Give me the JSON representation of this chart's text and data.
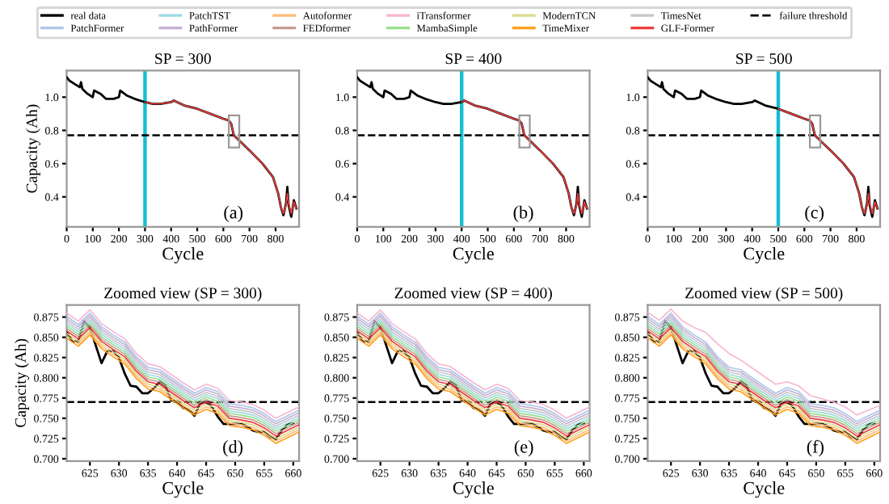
{
  "chart_data": [
    {
      "type": "line",
      "title": "SP = 300",
      "xlabel": "Cycle",
      "ylabel": "Capacity (Ah)",
      "xlim": [
        0,
        890
      ],
      "xticks": [
        0,
        100,
        200,
        300,
        400,
        500,
        600,
        700,
        800
      ],
      "ylim": [
        0.22,
        1.16
      ],
      "yticks": [
        0.4,
        0.6,
        0.8,
        {
          "value": 1.0,
          "label": "1.0"
        }
      ],
      "line_style": "solid",
      "marker": "none",
      "grid": false,
      "annotations": [
        "(a)"
      ],
      "ref_lines": [
        {
          "axis": "x",
          "value": 300,
          "color": "#17becf",
          "line_style": "solid"
        },
        {
          "axis": "y",
          "value": 0.77,
          "color": "#000000",
          "line_style": "dashed"
        }
      ],
      "series": [
        {
          "color": "#000000",
          "x": [
            0,
            10,
            30,
            50,
            55,
            60,
            80,
            100,
            105,
            130,
            150,
            180,
            200,
            205,
            230,
            260,
            300,
            330,
            360,
            400,
            410,
            450,
            500,
            550,
            600,
            620,
            630,
            640,
            660,
            700,
            750,
            790,
            810,
            820,
            830,
            840,
            845,
            850,
            860,
            870,
            880
          ],
          "values": [
            1.12,
            1.1,
            1.08,
            1.06,
            1.09,
            1.05,
            1.02,
            1.0,
            1.04,
            1.02,
            0.99,
            0.99,
            1.0,
            1.04,
            1.01,
            0.99,
            0.97,
            0.96,
            0.96,
            0.97,
            0.98,
            0.95,
            0.93,
            0.9,
            0.87,
            0.86,
            0.84,
            0.77,
            0.74,
            0.68,
            0.6,
            0.52,
            0.42,
            0.34,
            0.29,
            0.36,
            0.46,
            0.35,
            0.28,
            0.38,
            0.33
          ]
        },
        {
          "color": "#f03c3c",
          "x": [
            300,
            330,
            360,
            400,
            410,
            450,
            500,
            550,
            600,
            620,
            630,
            640,
            660,
            700,
            750,
            790,
            810,
            820,
            830,
            840,
            845,
            850,
            860,
            870,
            880
          ],
          "values": [
            0.97,
            0.96,
            0.96,
            0.97,
            0.98,
            0.95,
            0.93,
            0.9,
            0.87,
            0.86,
            0.84,
            0.77,
            0.74,
            0.68,
            0.6,
            0.52,
            0.42,
            0.34,
            0.3,
            0.35,
            0.42,
            0.36,
            0.3,
            0.37,
            0.33
          ]
        }
      ]
    },
    {
      "type": "line",
      "title": "SP = 400",
      "xlabel": "Cycle",
      "xlim": [
        0,
        890
      ],
      "xticks": [
        0,
        100,
        200,
        300,
        400,
        500,
        600,
        700,
        800
      ],
      "ylim": [
        0.22,
        1.16
      ],
      "yticks": [
        0.4,
        0.6,
        0.8,
        {
          "value": 1.0,
          "label": "1.0"
        }
      ],
      "line_style": "solid",
      "marker": "none",
      "grid": false,
      "annotations": [
        "(b)"
      ],
      "ref_lines": [
        {
          "axis": "x",
          "value": 400,
          "color": "#17becf",
          "line_style": "solid"
        },
        {
          "axis": "y",
          "value": 0.77,
          "color": "#000000",
          "line_style": "dashed"
        }
      ],
      "series": [
        {
          "color": "#000000",
          "x": [
            0,
            10,
            30,
            50,
            55,
            60,
            80,
            100,
            105,
            130,
            150,
            180,
            200,
            205,
            230,
            260,
            300,
            330,
            360,
            400,
            410,
            450,
            500,
            550,
            600,
            620,
            630,
            640,
            660,
            700,
            750,
            790,
            810,
            820,
            830,
            840,
            845,
            850,
            860,
            870,
            880
          ],
          "values": [
            1.12,
            1.1,
            1.08,
            1.06,
            1.09,
            1.05,
            1.02,
            1.0,
            1.04,
            1.02,
            0.99,
            0.99,
            1.0,
            1.04,
            1.01,
            0.99,
            0.97,
            0.96,
            0.96,
            0.97,
            0.98,
            0.95,
            0.93,
            0.9,
            0.87,
            0.86,
            0.84,
            0.77,
            0.74,
            0.68,
            0.6,
            0.52,
            0.42,
            0.34,
            0.29,
            0.36,
            0.46,
            0.35,
            0.28,
            0.38,
            0.33
          ]
        },
        {
          "color": "#f03c3c",
          "x": [
            400,
            410,
            450,
            500,
            550,
            600,
            620,
            630,
            640,
            660,
            700,
            750,
            790,
            810,
            820,
            830,
            840,
            845,
            850,
            860,
            870,
            880
          ],
          "values": [
            0.97,
            0.98,
            0.95,
            0.93,
            0.9,
            0.87,
            0.86,
            0.84,
            0.77,
            0.74,
            0.68,
            0.6,
            0.52,
            0.42,
            0.34,
            0.3,
            0.35,
            0.42,
            0.36,
            0.3,
            0.37,
            0.33
          ]
        }
      ]
    },
    {
      "type": "line",
      "title": "SP = 500",
      "xlabel": "Cycle",
      "xlim": [
        0,
        890
      ],
      "xticks": [
        0,
        100,
        200,
        300,
        400,
        500,
        600,
        700,
        800
      ],
      "ylim": [
        0.22,
        1.16
      ],
      "yticks": [
        0.4,
        0.6,
        0.8,
        {
          "value": 1.0,
          "label": "1.0"
        }
      ],
      "line_style": "solid",
      "marker": "none",
      "grid": false,
      "annotations": [
        "(c)"
      ],
      "ref_lines": [
        {
          "axis": "x",
          "value": 500,
          "color": "#17becf",
          "line_style": "solid"
        },
        {
          "axis": "y",
          "value": 0.77,
          "color": "#000000",
          "line_style": "dashed"
        }
      ],
      "series": [
        {
          "color": "#000000",
          "x": [
            0,
            10,
            30,
            50,
            55,
            60,
            80,
            100,
            105,
            130,
            150,
            180,
            200,
            205,
            230,
            260,
            300,
            330,
            360,
            400,
            410,
            450,
            500,
            550,
            600,
            620,
            630,
            640,
            660,
            700,
            750,
            790,
            810,
            820,
            830,
            840,
            845,
            850,
            860,
            870,
            880
          ],
          "values": [
            1.12,
            1.1,
            1.08,
            1.06,
            1.09,
            1.05,
            1.02,
            1.0,
            1.04,
            1.02,
            0.99,
            0.99,
            1.0,
            1.04,
            1.01,
            0.99,
            0.97,
            0.96,
            0.96,
            0.97,
            0.98,
            0.95,
            0.93,
            0.9,
            0.87,
            0.86,
            0.84,
            0.77,
            0.74,
            0.68,
            0.6,
            0.52,
            0.42,
            0.34,
            0.29,
            0.36,
            0.46,
            0.35,
            0.28,
            0.38,
            0.33
          ]
        },
        {
          "color": "#f03c3c",
          "x": [
            500,
            550,
            600,
            620,
            630,
            640,
            660,
            700,
            750,
            790,
            810,
            820,
            830,
            840,
            845,
            850,
            860,
            870,
            880
          ],
          "values": [
            0.93,
            0.9,
            0.87,
            0.86,
            0.84,
            0.77,
            0.74,
            0.68,
            0.6,
            0.52,
            0.42,
            0.34,
            0.3,
            0.35,
            0.42,
            0.36,
            0.3,
            0.37,
            0.33
          ]
        }
      ]
    },
    {
      "type": "line",
      "title": "Zoomed view (SP = 300)",
      "xlabel": "Cycle",
      "ylabel": "Capacity (Ah)",
      "xlim": [
        621,
        661
      ],
      "xticks": [
        625,
        630,
        635,
        640,
        645,
        650,
        655,
        660
      ],
      "ylim": [
        0.697,
        0.89
      ],
      "yticks": [
        {
          "value": 0.7,
          "label": "0.700"
        },
        {
          "value": 0.725,
          "label": "0.725"
        },
        {
          "value": 0.75,
          "label": "0.750"
        },
        {
          "value": 0.775,
          "label": "0.775"
        },
        {
          "value": 0.8,
          "label": "0.800"
        },
        {
          "value": 0.825,
          "label": "0.825"
        },
        {
          "value": 0.85,
          "label": "0.850"
        },
        {
          "value": 0.875,
          "label": "0.875"
        }
      ],
      "line_style": "solid",
      "marker": "none",
      "grid": false,
      "legend": "top",
      "annotations": [
        "(d)"
      ],
      "ref_lines": [
        {
          "axis": "y",
          "value": 0.77,
          "color": "#000000",
          "line_style": "dashed",
          "label": "failure threshold"
        }
      ],
      "x": [
        621,
        623,
        625,
        627,
        629,
        631,
        633,
        635,
        637,
        639,
        641,
        643,
        645,
        647,
        649,
        651,
        653,
        655,
        657,
        659,
        661
      ],
      "series": [
        {
          "name": "real data",
          "color": "#000000",
          "x": [
            621,
            622,
            623,
            624,
            625,
            626,
            627,
            628,
            629,
            630,
            631,
            632,
            633,
            634,
            635,
            636,
            637,
            638,
            639,
            640,
            641,
            642,
            643,
            644,
            645,
            646,
            647,
            648,
            649,
            650,
            651,
            652,
            653,
            654,
            655,
            656,
            657,
            658,
            659,
            660
          ],
          "values": [
            0.856,
            0.845,
            0.845,
            0.87,
            0.862,
            0.84,
            0.818,
            0.833,
            0.833,
            0.825,
            0.805,
            0.79,
            0.789,
            0.781,
            0.781,
            0.787,
            0.795,
            0.79,
            0.772,
            0.771,
            0.763,
            0.761,
            0.753,
            0.769,
            0.77,
            0.764,
            0.752,
            0.743,
            0.743,
            0.743,
            0.743,
            0.74,
            0.735,
            0.733,
            0.733,
            0.727,
            0.724,
            0.735,
            0.742,
            0.744
          ]
        },
        {
          "name": "PatchFormer",
          "color": "#aec7e8",
          "values": [
            0.876,
            0.866,
            0.88,
            0.863,
            0.853,
            0.844,
            0.826,
            0.813,
            0.81,
            0.8,
            0.79,
            0.781,
            0.788,
            0.783,
            0.768,
            0.766,
            0.763,
            0.756,
            0.746,
            0.753,
            0.76
          ]
        },
        {
          "name": "PatchTST",
          "color": "#9edae5",
          "values": [
            0.867,
            0.857,
            0.871,
            0.854,
            0.844,
            0.835,
            0.817,
            0.804,
            0.801,
            0.791,
            0.781,
            0.772,
            0.779,
            0.774,
            0.759,
            0.757,
            0.754,
            0.747,
            0.737,
            0.744,
            0.751
          ]
        },
        {
          "name": "PathFormer",
          "color": "#c5b0d5",
          "values": [
            0.873,
            0.863,
            0.877,
            0.86,
            0.85,
            0.841,
            0.823,
            0.81,
            0.807,
            0.797,
            0.787,
            0.778,
            0.785,
            0.78,
            0.765,
            0.763,
            0.76,
            0.753,
            0.743,
            0.75,
            0.757
          ]
        },
        {
          "name": "Autoformer",
          "color": "#ffbb78",
          "values": [
            0.852,
            0.842,
            0.856,
            0.839,
            0.829,
            0.82,
            0.802,
            0.789,
            0.786,
            0.776,
            0.766,
            0.757,
            0.764,
            0.759,
            0.744,
            0.742,
            0.739,
            0.732,
            0.722,
            0.729,
            0.736
          ]
        },
        {
          "name": "FEDformer",
          "color": "#c49c94",
          "values": [
            0.861,
            0.851,
            0.865,
            0.848,
            0.838,
            0.829,
            0.811,
            0.798,
            0.795,
            0.785,
            0.775,
            0.766,
            0.773,
            0.768,
            0.753,
            0.751,
            0.748,
            0.741,
            0.731,
            0.738,
            0.745
          ]
        },
        {
          "name": "iTransformer",
          "color": "#f7b6d2",
          "values": [
            0.88,
            0.87,
            0.884,
            0.867,
            0.857,
            0.848,
            0.83,
            0.817,
            0.814,
            0.804,
            0.794,
            0.785,
            0.792,
            0.787,
            0.772,
            0.77,
            0.767,
            0.76,
            0.75,
            0.757,
            0.764
          ]
        },
        {
          "name": "MambaSimple",
          "color": "#98df8a",
          "values": [
            0.864,
            0.854,
            0.868,
            0.851,
            0.841,
            0.832,
            0.814,
            0.801,
            0.798,
            0.788,
            0.778,
            0.769,
            0.776,
            0.771,
            0.756,
            0.754,
            0.751,
            0.744,
            0.734,
            0.741,
            0.748
          ]
        },
        {
          "name": "ModernTCN",
          "color": "#dbdb8d",
          "values": [
            0.855,
            0.845,
            0.859,
            0.842,
            0.832,
            0.823,
            0.805,
            0.792,
            0.789,
            0.779,
            0.769,
            0.76,
            0.767,
            0.762,
            0.747,
            0.745,
            0.742,
            0.735,
            0.725,
            0.732,
            0.739
          ]
        },
        {
          "name": "TimeMixer",
          "color": "#ff9f1c",
          "values": [
            0.849,
            0.839,
            0.853,
            0.836,
            0.826,
            0.817,
            0.799,
            0.786,
            0.783,
            0.773,
            0.763,
            0.754,
            0.761,
            0.756,
            0.741,
            0.739,
            0.736,
            0.729,
            0.719,
            0.726,
            0.733
          ]
        },
        {
          "name": "TimesNet",
          "color": "#c7c7c7",
          "values": [
            0.87,
            0.86,
            0.874,
            0.857,
            0.847,
            0.838,
            0.82,
            0.807,
            0.804,
            0.794,
            0.784,
            0.775,
            0.782,
            0.777,
            0.762,
            0.76,
            0.757,
            0.75,
            0.74,
            0.747,
            0.754
          ]
        },
        {
          "name": "GLF-Former",
          "color": "#f03c3c",
          "values": [
            0.858,
            0.848,
            0.862,
            0.845,
            0.835,
            0.826,
            0.808,
            0.795,
            0.792,
            0.782,
            0.772,
            0.763,
            0.77,
            0.765,
            0.75,
            0.748,
            0.745,
            0.738,
            0.728,
            0.735,
            0.742
          ]
        }
      ]
    },
    {
      "type": "line",
      "title": "Zoomed view (SP = 400)",
      "xlabel": "Cycle",
      "xlim": [
        621,
        661
      ],
      "xticks": [
        625,
        630,
        635,
        640,
        645,
        650,
        655,
        660
      ],
      "ylim": [
        0.697,
        0.89
      ],
      "yticks": [
        {
          "value": 0.7,
          "label": "0.700"
        },
        {
          "value": 0.725,
          "label": "0.725"
        },
        {
          "value": 0.75,
          "label": "0.750"
        },
        {
          "value": 0.775,
          "label": "0.775"
        },
        {
          "value": 0.8,
          "label": "0.800"
        },
        {
          "value": 0.825,
          "label": "0.825"
        },
        {
          "value": 0.85,
          "label": "0.850"
        },
        {
          "value": 0.875,
          "label": "0.875"
        }
      ],
      "line_style": "solid",
      "marker": "none",
      "grid": false,
      "annotations": [
        "(e)"
      ],
      "ref_lines": [
        {
          "axis": "y",
          "value": 0.77,
          "color": "#000000",
          "line_style": "dashed"
        }
      ],
      "x": [
        621,
        623,
        625,
        627,
        629,
        631,
        633,
        635,
        637,
        639,
        641,
        643,
        645,
        647,
        649,
        651,
        653,
        655,
        657,
        659,
        661
      ],
      "series": [
        {
          "color": "#000000",
          "x": [
            621,
            622,
            623,
            624,
            625,
            626,
            627,
            628,
            629,
            630,
            631,
            632,
            633,
            634,
            635,
            636,
            637,
            638,
            639,
            640,
            641,
            642,
            643,
            644,
            645,
            646,
            647,
            648,
            649,
            650,
            651,
            652,
            653,
            654,
            655,
            656,
            657,
            658,
            659,
            660
          ],
          "values": [
            0.856,
            0.845,
            0.845,
            0.87,
            0.862,
            0.84,
            0.818,
            0.833,
            0.833,
            0.825,
            0.805,
            0.79,
            0.789,
            0.781,
            0.781,
            0.787,
            0.795,
            0.79,
            0.772,
            0.771,
            0.763,
            0.761,
            0.753,
            0.769,
            0.77,
            0.764,
            0.752,
            0.743,
            0.743,
            0.743,
            0.743,
            0.74,
            0.735,
            0.733,
            0.733,
            0.727,
            0.724,
            0.735,
            0.742,
            0.744
          ]
        },
        {
          "color": "#aec7e8",
          "values": [
            0.876,
            0.866,
            0.88,
            0.863,
            0.853,
            0.844,
            0.826,
            0.813,
            0.81,
            0.8,
            0.79,
            0.781,
            0.788,
            0.783,
            0.768,
            0.766,
            0.763,
            0.756,
            0.746,
            0.753,
            0.76
          ]
        },
        {
          "color": "#9edae5",
          "values": [
            0.867,
            0.857,
            0.871,
            0.854,
            0.844,
            0.835,
            0.817,
            0.804,
            0.801,
            0.791,
            0.781,
            0.772,
            0.779,
            0.774,
            0.759,
            0.757,
            0.754,
            0.747,
            0.737,
            0.744,
            0.751
          ]
        },
        {
          "color": "#c5b0d5",
          "values": [
            0.873,
            0.863,
            0.877,
            0.86,
            0.85,
            0.841,
            0.823,
            0.81,
            0.807,
            0.797,
            0.787,
            0.778,
            0.785,
            0.78,
            0.765,
            0.763,
            0.76,
            0.753,
            0.743,
            0.75,
            0.757
          ]
        },
        {
          "color": "#ffbb78",
          "values": [
            0.852,
            0.842,
            0.856,
            0.839,
            0.829,
            0.82,
            0.802,
            0.789,
            0.786,
            0.776,
            0.766,
            0.757,
            0.764,
            0.759,
            0.744,
            0.742,
            0.739,
            0.732,
            0.722,
            0.729,
            0.736
          ]
        },
        {
          "color": "#c49c94",
          "values": [
            0.861,
            0.851,
            0.865,
            0.848,
            0.838,
            0.829,
            0.811,
            0.798,
            0.795,
            0.785,
            0.775,
            0.766,
            0.773,
            0.768,
            0.753,
            0.751,
            0.748,
            0.741,
            0.731,
            0.738,
            0.745
          ]
        },
        {
          "color": "#f7b6d2",
          "values": [
            0.88,
            0.87,
            0.884,
            0.867,
            0.857,
            0.848,
            0.83,
            0.817,
            0.814,
            0.804,
            0.794,
            0.785,
            0.792,
            0.787,
            0.772,
            0.77,
            0.767,
            0.76,
            0.75,
            0.757,
            0.764
          ]
        },
        {
          "color": "#98df8a",
          "values": [
            0.864,
            0.854,
            0.868,
            0.851,
            0.841,
            0.832,
            0.814,
            0.801,
            0.798,
            0.788,
            0.778,
            0.769,
            0.776,
            0.771,
            0.756,
            0.754,
            0.751,
            0.744,
            0.734,
            0.741,
            0.748
          ]
        },
        {
          "color": "#dbdb8d",
          "values": [
            0.855,
            0.845,
            0.859,
            0.842,
            0.832,
            0.823,
            0.805,
            0.792,
            0.789,
            0.779,
            0.769,
            0.76,
            0.767,
            0.762,
            0.747,
            0.745,
            0.742,
            0.735,
            0.725,
            0.732,
            0.739
          ]
        },
        {
          "color": "#ff9f1c",
          "values": [
            0.849,
            0.839,
            0.853,
            0.836,
            0.826,
            0.817,
            0.799,
            0.786,
            0.783,
            0.773,
            0.763,
            0.754,
            0.761,
            0.756,
            0.741,
            0.739,
            0.736,
            0.729,
            0.719,
            0.726,
            0.733
          ]
        },
        {
          "color": "#c7c7c7",
          "values": [
            0.87,
            0.86,
            0.874,
            0.857,
            0.847,
            0.838,
            0.82,
            0.807,
            0.804,
            0.794,
            0.784,
            0.775,
            0.782,
            0.777,
            0.762,
            0.76,
            0.757,
            0.75,
            0.74,
            0.747,
            0.754
          ]
        },
        {
          "color": "#f03c3c",
          "values": [
            0.858,
            0.848,
            0.862,
            0.845,
            0.835,
            0.826,
            0.808,
            0.795,
            0.792,
            0.782,
            0.772,
            0.763,
            0.77,
            0.765,
            0.75,
            0.748,
            0.745,
            0.738,
            0.728,
            0.735,
            0.742
          ]
        }
      ]
    },
    {
      "type": "line",
      "title": "Zoomed view (SP = 500)",
      "xlabel": "Cycle",
      "xlim": [
        621,
        661
      ],
      "xticks": [
        625,
        630,
        635,
        640,
        645,
        650,
        655,
        660
      ],
      "ylim": [
        0.697,
        0.89
      ],
      "yticks": [
        {
          "value": 0.7,
          "label": "0.700"
        },
        {
          "value": 0.725,
          "label": "0.725"
        },
        {
          "value": 0.75,
          "label": "0.750"
        },
        {
          "value": 0.775,
          "label": "0.775"
        },
        {
          "value": 0.8,
          "label": "0.800"
        },
        {
          "value": 0.825,
          "label": "0.825"
        },
        {
          "value": 0.85,
          "label": "0.850"
        },
        {
          "value": 0.875,
          "label": "0.875"
        }
      ],
      "line_style": "solid",
      "marker": "none",
      "grid": false,
      "annotations": [
        "(f)"
      ],
      "ref_lines": [
        {
          "axis": "y",
          "value": 0.77,
          "color": "#000000",
          "line_style": "dashed"
        }
      ],
      "x": [
        621,
        623,
        625,
        627,
        629,
        631,
        633,
        635,
        637,
        639,
        641,
        643,
        645,
        647,
        649,
        651,
        653,
        655,
        657,
        659,
        661
      ],
      "series": [
        {
          "color": "#000000",
          "x": [
            621,
            622,
            623,
            624,
            625,
            626,
            627,
            628,
            629,
            630,
            631,
            632,
            633,
            634,
            635,
            636,
            637,
            638,
            639,
            640,
            641,
            642,
            643,
            644,
            645,
            646,
            647,
            648,
            649,
            650,
            651,
            652,
            653,
            654,
            655,
            656,
            657,
            658,
            659,
            660
          ],
          "values": [
            0.856,
            0.845,
            0.845,
            0.87,
            0.862,
            0.84,
            0.818,
            0.833,
            0.833,
            0.825,
            0.805,
            0.79,
            0.789,
            0.781,
            0.781,
            0.787,
            0.795,
            0.79,
            0.772,
            0.771,
            0.763,
            0.761,
            0.753,
            0.769,
            0.77,
            0.764,
            0.752,
            0.743,
            0.743,
            0.743,
            0.743,
            0.74,
            0.735,
            0.733,
            0.733,
            0.727,
            0.724,
            0.735,
            0.742,
            0.744
          ]
        },
        {
          "color": "#aec7e8",
          "values": [
            0.876,
            0.866,
            0.88,
            0.863,
            0.853,
            0.844,
            0.826,
            0.813,
            0.81,
            0.8,
            0.79,
            0.781,
            0.788,
            0.783,
            0.768,
            0.766,
            0.763,
            0.756,
            0.746,
            0.753,
            0.76
          ]
        },
        {
          "color": "#9edae5",
          "values": [
            0.867,
            0.857,
            0.871,
            0.854,
            0.844,
            0.835,
            0.817,
            0.804,
            0.801,
            0.791,
            0.781,
            0.772,
            0.779,
            0.774,
            0.759,
            0.757,
            0.754,
            0.747,
            0.737,
            0.744,
            0.751
          ]
        },
        {
          "color": "#c5b0d5",
          "values": [
            0.873,
            0.863,
            0.877,
            0.86,
            0.85,
            0.841,
            0.823,
            0.81,
            0.807,
            0.797,
            0.787,
            0.778,
            0.785,
            0.78,
            0.765,
            0.763,
            0.76,
            0.753,
            0.743,
            0.75,
            0.757
          ]
        },
        {
          "color": "#ffbb78",
          "values": [
            0.852,
            0.842,
            0.856,
            0.839,
            0.829,
            0.82,
            0.802,
            0.789,
            0.786,
            0.776,
            0.766,
            0.757,
            0.764,
            0.759,
            0.744,
            0.742,
            0.739,
            0.732,
            0.722,
            0.729,
            0.736
          ]
        },
        {
          "color": "#c49c94",
          "values": [
            0.861,
            0.851,
            0.865,
            0.848,
            0.838,
            0.829,
            0.811,
            0.798,
            0.795,
            0.785,
            0.775,
            0.766,
            0.773,
            0.768,
            0.753,
            0.751,
            0.748,
            0.741,
            0.731,
            0.738,
            0.745
          ]
        },
        {
          "color": "#f7b6d2",
          "values": [
            0.881,
            0.871,
            0.885,
            0.87,
            0.862,
            0.856,
            0.842,
            0.83,
            0.822,
            0.812,
            0.802,
            0.792,
            0.795,
            0.79,
            0.778,
            0.774,
            0.77,
            0.764,
            0.754,
            0.76,
            0.766
          ]
        },
        {
          "color": "#98df8a",
          "values": [
            0.864,
            0.854,
            0.868,
            0.851,
            0.841,
            0.832,
            0.814,
            0.801,
            0.798,
            0.788,
            0.778,
            0.769,
            0.776,
            0.771,
            0.756,
            0.754,
            0.751,
            0.744,
            0.734,
            0.741,
            0.748
          ]
        },
        {
          "color": "#dbdb8d",
          "values": [
            0.855,
            0.845,
            0.859,
            0.842,
            0.832,
            0.823,
            0.805,
            0.792,
            0.789,
            0.779,
            0.769,
            0.76,
            0.767,
            0.762,
            0.747,
            0.745,
            0.742,
            0.735,
            0.725,
            0.732,
            0.739
          ]
        },
        {
          "color": "#ff9f1c",
          "values": [
            0.849,
            0.839,
            0.853,
            0.836,
            0.826,
            0.817,
            0.799,
            0.786,
            0.783,
            0.773,
            0.763,
            0.754,
            0.761,
            0.756,
            0.741,
            0.739,
            0.736,
            0.729,
            0.719,
            0.726,
            0.733
          ]
        },
        {
          "color": "#c7c7c7",
          "values": [
            0.87,
            0.86,
            0.874,
            0.857,
            0.847,
            0.838,
            0.82,
            0.807,
            0.804,
            0.794,
            0.784,
            0.775,
            0.782,
            0.777,
            0.762,
            0.76,
            0.757,
            0.75,
            0.74,
            0.747,
            0.754
          ]
        },
        {
          "color": "#f03c3c",
          "values": [
            0.858,
            0.848,
            0.862,
            0.845,
            0.835,
            0.826,
            0.808,
            0.795,
            0.792,
            0.782,
            0.772,
            0.763,
            0.77,
            0.765,
            0.75,
            0.748,
            0.745,
            0.738,
            0.728,
            0.735,
            0.742
          ]
        }
      ]
    }
  ]
}
